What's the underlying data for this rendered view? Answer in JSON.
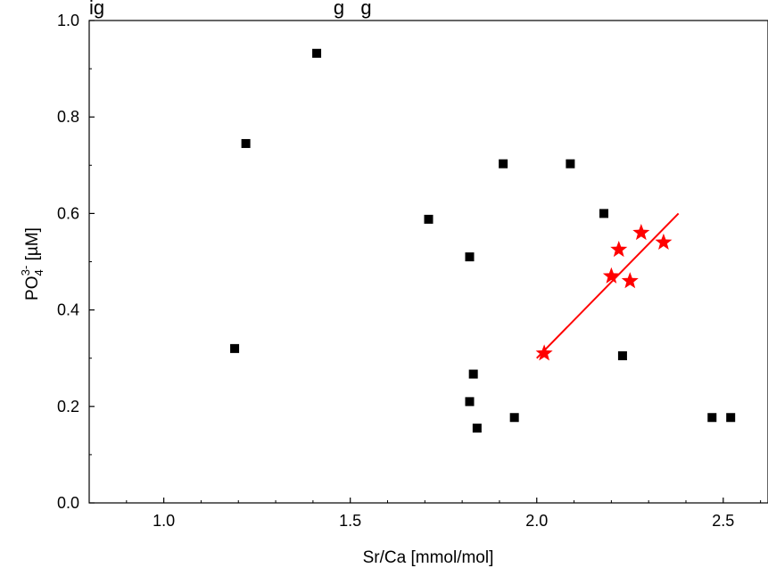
{
  "chart_data": {
    "type": "scatter",
    "title": "ig                                          g   g",
    "xlabel": "Sr/Ca  [mmol/mol]",
    "ylabel": {
      "base": "PO",
      "subscript": "4",
      "superscript": "3-",
      "unit": " [µM]"
    },
    "xlim": [
      0.8,
      2.62
    ],
    "ylim": [
      0.0,
      1.0
    ],
    "x_ticks": [
      1.0,
      1.5,
      2.0,
      2.5
    ],
    "x_tick_labels": [
      "1.0",
      "1.5",
      "2.0",
      "2.5"
    ],
    "y_ticks": [
      0.0,
      0.2,
      0.4,
      0.6,
      0.8,
      1.0
    ],
    "y_tick_labels": [
      "0.0",
      "0.2",
      "0.4",
      "0.6",
      "0.8",
      "1.0"
    ],
    "grid": false,
    "legend": "none",
    "series": [
      {
        "marker": "square",
        "color": "#000000",
        "x": [
          1.19,
          1.22,
          1.41,
          1.71,
          1.82,
          1.82,
          1.83,
          1.84,
          1.91,
          1.94,
          2.09,
          2.18,
          2.23,
          2.47,
          2.52
        ],
        "y": [
          0.32,
          0.745,
          0.932,
          0.588,
          0.51,
          0.21,
          0.267,
          0.155,
          0.703,
          0.177,
          0.703,
          0.6,
          0.305,
          0.177,
          0.177
        ]
      },
      {
        "marker": "star",
        "color": "#ff0000",
        "x": [
          2.02,
          2.2,
          2.22,
          2.25,
          2.28,
          2.34
        ],
        "y": [
          0.31,
          0.47,
          0.525,
          0.46,
          0.56,
          0.54
        ]
      }
    ],
    "fit_line": {
      "color": "#ff0000",
      "x": [
        2.0,
        2.38
      ],
      "y": [
        0.3,
        0.6
      ]
    }
  }
}
